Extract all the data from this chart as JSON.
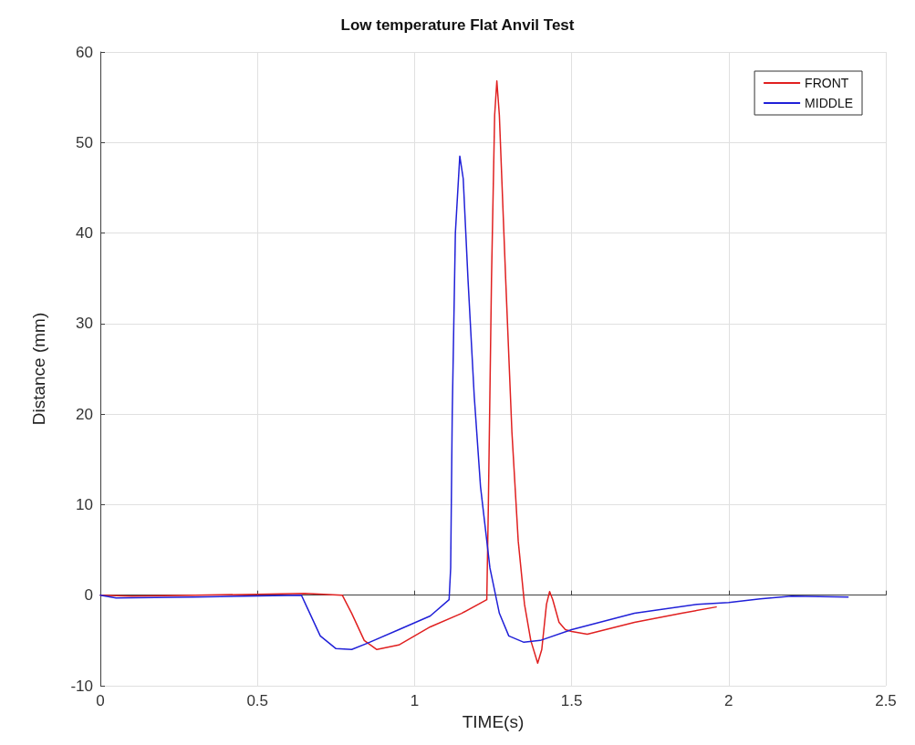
{
  "chart_data": {
    "type": "line",
    "title": "Low temperature Flat Anvil Test",
    "xlabel": "TIME(s)",
    "ylabel": "Distance (mm)",
    "xlim": [
      0,
      2.5
    ],
    "xticks": [
      0,
      0.5,
      1,
      1.5,
      2,
      2.5
    ],
    "ylim": [
      -10,
      60
    ],
    "yticks": [
      -10,
      0,
      10,
      20,
      30,
      40,
      50,
      60
    ],
    "grid": true,
    "legend": "top right",
    "marker": "none",
    "line_style": "solid",
    "series": [
      {
        "name": "FRONT",
        "color": "#e02020",
        "x": [
          0,
          0.1,
          0.3,
          0.5,
          0.65,
          0.77,
          0.8,
          0.84,
          0.88,
          0.95,
          1.05,
          1.15,
          1.23,
          1.235,
          1.245,
          1.255,
          1.262,
          1.27,
          1.29,
          1.31,
          1.33,
          1.35,
          1.37,
          1.392,
          1.405,
          1.42,
          1.43,
          1.44,
          1.46,
          1.48,
          1.5,
          1.55,
          1.7,
          1.85,
          1.96
        ],
        "values": [
          0,
          -0.1,
          0,
          0.1,
          0.2,
          0,
          -2,
          -5,
          -6,
          -5.5,
          -3.5,
          -2,
          -0.5,
          10,
          35,
          53,
          56.8,
          53,
          35,
          18,
          6,
          -1,
          -5,
          -7.5,
          -6,
          -1,
          0.4,
          -0.5,
          -3,
          -3.8,
          -4,
          -4.3,
          -3,
          -2,
          -1.3
        ]
      },
      {
        "name": "MIDDLE",
        "color": "#2020d8",
        "x": [
          0,
          0.05,
          0.3,
          0.64,
          0.66,
          0.7,
          0.75,
          0.8,
          0.85,
          0.95,
          1.05,
          1.11,
          1.115,
          1.12,
          1.13,
          1.144,
          1.155,
          1.17,
          1.19,
          1.21,
          1.24,
          1.27,
          1.3,
          1.348,
          1.4,
          1.5,
          1.7,
          1.9,
          2.0,
          2.1,
          2.2,
          2.38
        ],
        "values": [
          0,
          -0.3,
          -0.2,
          0,
          -1.5,
          -4.5,
          -5.9,
          -6,
          -5.3,
          -3.8,
          -2.3,
          -0.5,
          3,
          20,
          40,
          48.5,
          46,
          35,
          22,
          12,
          3,
          -2,
          -4.5,
          -5.2,
          -5,
          -3.8,
          -2,
          -1,
          -0.8,
          -0.4,
          -0.1,
          -0.2
        ]
      }
    ]
  }
}
